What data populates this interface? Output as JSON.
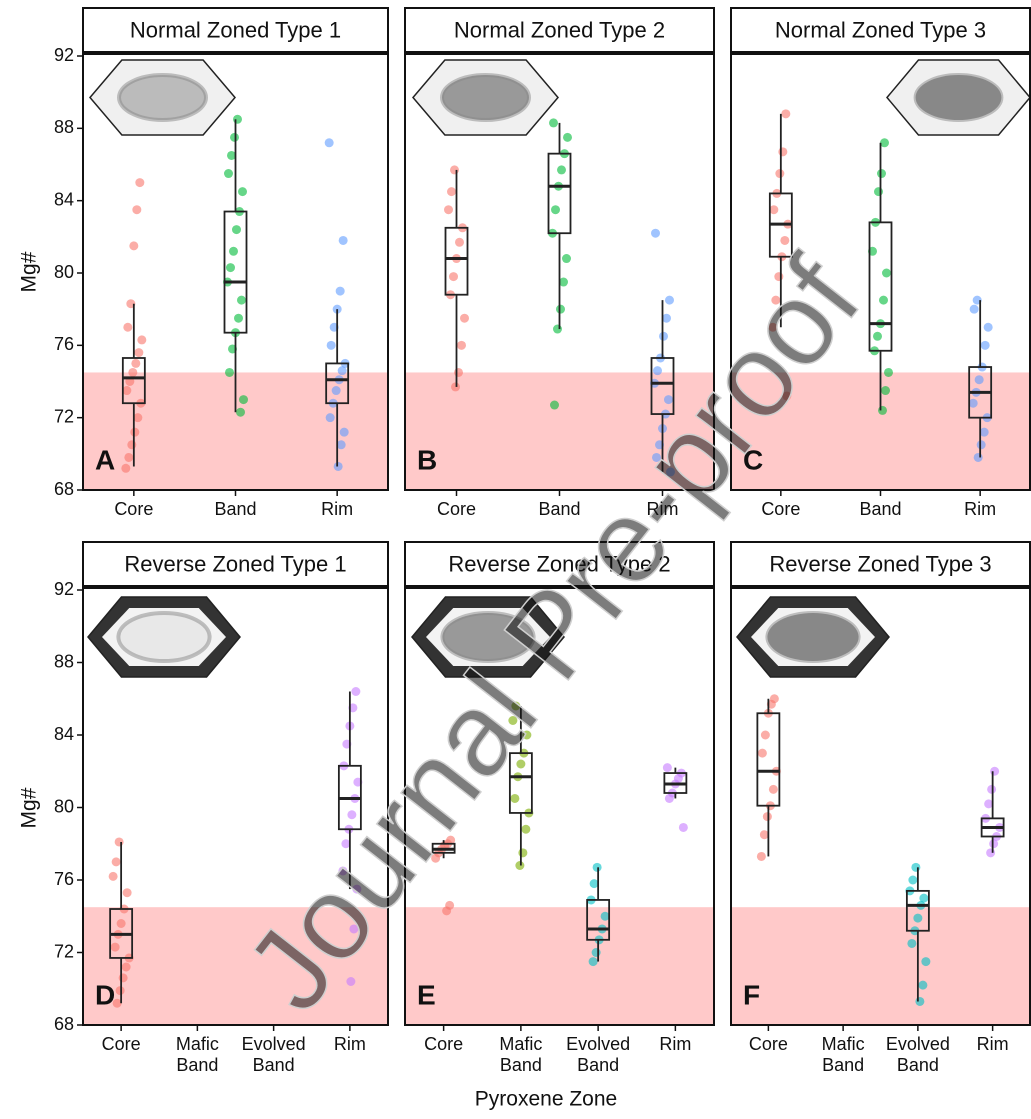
{
  "y_label": "Mg#",
  "x_label": "Pyroxene Zone",
  "watermark": "Journal Pre-proof",
  "chart_data": [
    {
      "type": "box",
      "title": "Normal Zoned Type 1",
      "label": "A",
      "categories": [
        "Core",
        "Band",
        "Rim"
      ],
      "colors": [
        "#F8766D",
        "#00BA38",
        "#619CFF"
      ],
      "ylim": [
        68,
        92
      ],
      "yticks": [
        68,
        72,
        76,
        80,
        84,
        88,
        92
      ],
      "shade": [
        68,
        74.5
      ],
      "boxes": [
        [
          69.3,
          72.8,
          74.2,
          75.3,
          78.3
        ],
        [
          72.3,
          76.7,
          79.5,
          83.4,
          88.5
        ],
        [
          69.3,
          72.8,
          74.1,
          75,
          78
        ]
      ],
      "points": [
        [
          69.2,
          69.8,
          70.5,
          71.2,
          72,
          72.8,
          73.5,
          74,
          74.5,
          75,
          75.6,
          76.3,
          77,
          78.3,
          81.5,
          83.5,
          85
        ],
        [
          72.3,
          73,
          74.5,
          75.8,
          76.7,
          77.5,
          78.5,
          79.5,
          80.3,
          81.2,
          82.4,
          83.4,
          84.5,
          85.5,
          86.5,
          87.5,
          88.5
        ],
        [
          69.3,
          70.5,
          71.2,
          72,
          72.8,
          73.5,
          74.1,
          74.6,
          75,
          76,
          77,
          78,
          79,
          81.8,
          87.2
        ]
      ]
    },
    {
      "type": "box",
      "title": "Normal Zoned Type 2",
      "label": "B",
      "categories": [
        "Core",
        "Band",
        "Rim"
      ],
      "colors": [
        "#F8766D",
        "#00BA38",
        "#619CFF"
      ],
      "ylim": [
        68,
        92
      ],
      "shade": [
        68,
        74.5
      ],
      "boxes": [
        [
          73.7,
          78.8,
          80.8,
          82.5,
          85.7
        ],
        [
          76.9,
          82.2,
          84.8,
          86.6,
          88.3
        ],
        [
          69,
          72.2,
          73.9,
          75.3,
          78.5
        ]
      ],
      "points": [
        [
          73.7,
          74.5,
          76,
          77.5,
          78.8,
          79.8,
          80.8,
          81.7,
          82.5,
          83.5,
          84.5,
          85.7
        ],
        [
          72.7,
          76.9,
          78,
          79.5,
          80.8,
          82.2,
          83.5,
          84.8,
          85.7,
          86.6,
          87.5,
          88.3
        ],
        [
          69,
          69.8,
          70.5,
          71.4,
          72.2,
          73,
          73.9,
          74.6,
          75.3,
          76.5,
          77.5,
          78.5,
          82.2
        ]
      ]
    },
    {
      "type": "box",
      "title": "Normal Zoned Type 3",
      "label": "C",
      "categories": [
        "Core",
        "Band",
        "Rim"
      ],
      "colors": [
        "#F8766D",
        "#00BA38",
        "#619CFF"
      ],
      "ylim": [
        68,
        92
      ],
      "shade": [
        68,
        74.5
      ],
      "boxes": [
        [
          77,
          80.9,
          82.7,
          84.4,
          88.8
        ],
        [
          72.4,
          75.7,
          77.2,
          82.8,
          87.2
        ],
        [
          69.8,
          72,
          73.4,
          74.8,
          78.5
        ]
      ],
      "points": [
        [
          73.2,
          77,
          78.5,
          79.8,
          80.9,
          81.8,
          82.7,
          83.5,
          84.4,
          85.5,
          86.7,
          88.8
        ],
        [
          72.4,
          73.5,
          74.5,
          75.7,
          76.5,
          77.2,
          78.5,
          80,
          81.2,
          82.8,
          84.5,
          85.5,
          87.2
        ],
        [
          69.8,
          70.5,
          71.2,
          72,
          72.8,
          73.4,
          74.1,
          74.8,
          76,
          77,
          78,
          78.5
        ]
      ]
    },
    {
      "type": "box",
      "title": "Reverse Zoned Type 1",
      "label": "D",
      "categories": [
        "Core",
        "Mafic Band",
        "Evolved Band",
        "Rim"
      ],
      "colors": [
        "#F8766D",
        "#7CAE00",
        "#00BFC4",
        "#C77CFF"
      ],
      "ylim": [
        68,
        92
      ],
      "yticks": [
        68,
        72,
        76,
        80,
        84,
        88,
        92
      ],
      "shade": [
        68,
        74.5
      ],
      "boxes": [
        [
          69.2,
          71.7,
          73,
          74.4,
          78.1
        ],
        null,
        null,
        [
          75.5,
          78.8,
          80.5,
          82.3,
          86.4
        ]
      ],
      "points": [
        [
          69.2,
          69.9,
          70.6,
          71.2,
          71.7,
          72.3,
          73,
          73.6,
          74.4,
          75.3,
          76.2,
          77,
          78.1
        ],
        [],
        [],
        [
          70.4,
          73.3,
          75.5,
          76.5,
          78,
          78.8,
          79.6,
          80.5,
          81.4,
          82.3,
          83.5,
          84.5,
          85.5,
          86.4
        ]
      ]
    },
    {
      "type": "box",
      "title": "Reverse Zoned Type 2",
      "label": "E",
      "categories": [
        "Core",
        "Mafic Band",
        "Evolved Band",
        "Rim"
      ],
      "colors": [
        "#F8766D",
        "#7CAE00",
        "#00BFC4",
        "#C77CFF"
      ],
      "ylim": [
        68,
        92
      ],
      "shade": [
        68,
        74.5
      ],
      "boxes": [
        [
          77.2,
          77.5,
          77.7,
          78,
          78.2
        ],
        [
          76.8,
          79.7,
          81.7,
          83,
          85.6
        ],
        [
          71.5,
          72.7,
          73.3,
          74.9,
          76.7
        ],
        [
          80.5,
          80.8,
          81.3,
          81.9,
          82.2
        ]
      ],
      "points": [
        [
          74.3,
          74.6,
          77.2,
          77.5,
          77.7,
          77.9,
          78,
          78.2
        ],
        [
          76.8,
          77.5,
          78.8,
          79.7,
          80.5,
          81.7,
          82.4,
          83,
          84,
          84.8,
          85.6
        ],
        [
          71.5,
          72,
          72.7,
          73.3,
          74,
          74.9,
          75.8,
          76.7
        ],
        [
          78.9,
          80.5,
          80.8,
          81.3,
          81.6,
          81.9,
          82.2
        ]
      ]
    },
    {
      "type": "box",
      "title": "Reverse Zoned Type 3",
      "label": "F",
      "categories": [
        "Core",
        "Mafic Band",
        "Evolved Band",
        "Rim"
      ],
      "colors": [
        "#F8766D",
        "#7CAE00",
        "#00BFC4",
        "#C77CFF"
      ],
      "ylim": [
        68,
        92
      ],
      "shade": [
        68,
        74.5
      ],
      "boxes": [
        [
          77.3,
          80.1,
          82,
          85.2,
          86
        ],
        null,
        [
          69.3,
          73.2,
          74.6,
          75.4,
          76.7
        ],
        [
          77.5,
          78.4,
          78.9,
          79.4,
          82
        ]
      ],
      "points": [
        [
          77.3,
          78.5,
          79.5,
          80.1,
          81,
          82,
          83,
          84,
          85.2,
          85.7,
          86
        ],
        [],
        [
          69.3,
          70.2,
          71.5,
          72.5,
          73.2,
          73.9,
          74.6,
          75,
          75.4,
          76,
          76.7
        ],
        [
          77.5,
          78,
          78.4,
          78.9,
          79.4,
          80.2,
          81,
          82
        ]
      ]
    }
  ]
}
